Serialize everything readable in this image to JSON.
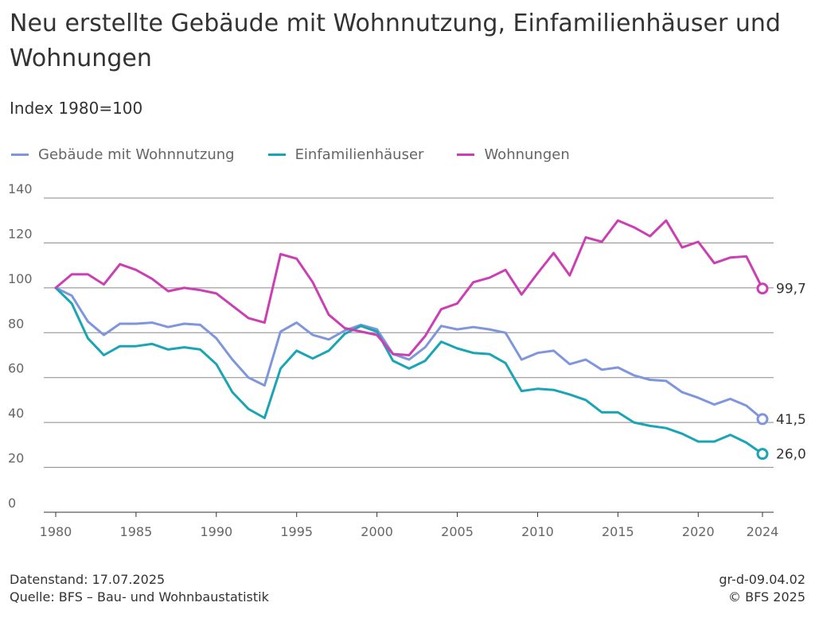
{
  "header": {
    "title": "Neu erstellte Gebäude mit Wohnnutzung, Einfamilienhäuser und Wohnungen",
    "subtitle": "Index 1980=100"
  },
  "footer": {
    "datenstand": "Datenstand: 17.07.2025",
    "quelle": "Quelle: BFS – Bau- und Wohnbaustatistik",
    "code": "gr-d-09.04.02",
    "copyright": "© BFS 2025"
  },
  "chart_data": {
    "type": "line",
    "title": "Neu erstellte Gebäude mit Wohnnutzung, Einfamilienhäuser und Wohnungen",
    "subtitle": "Index 1980=100",
    "xlabel": "",
    "ylabel": "Index 1980=100",
    "xlim": [
      1980,
      2024
    ],
    "ylim": [
      0,
      140
    ],
    "yticks": [
      0,
      20,
      40,
      60,
      80,
      100,
      120,
      140
    ],
    "xticks": [
      1980,
      1985,
      1990,
      1995,
      2000,
      2005,
      2010,
      2015,
      2020,
      2024
    ],
    "grid": "horizontal",
    "legend_position": "top-left",
    "x": [
      1980,
      1981,
      1982,
      1983,
      1984,
      1985,
      1986,
      1987,
      1988,
      1989,
      1990,
      1991,
      1992,
      1993,
      1994,
      1995,
      1996,
      1997,
      1998,
      1999,
      2000,
      2001,
      2002,
      2003,
      2004,
      2005,
      2006,
      2007,
      2008,
      2009,
      2010,
      2011,
      2012,
      2013,
      2014,
      2015,
      2016,
      2017,
      2018,
      2019,
      2020,
      2021,
      2022,
      2023,
      2024
    ],
    "series": [
      {
        "name": "Gebäude mit Wohnnutzung",
        "color": "#7f96dd",
        "end_label": "41,5",
        "values": [
          100,
          96.5,
          85,
          79,
          84,
          84,
          84.5,
          82.5,
          84,
          83.5,
          77.5,
          68,
          60,
          56.5,
          80.5,
          84.5,
          79,
          77,
          81,
          83.5,
          81.5,
          70.5,
          68,
          73.5,
          83,
          81.5,
          82.5,
          81.5,
          80,
          68,
          71,
          72,
          66,
          68,
          63.5,
          64.5,
          61,
          59,
          58.5,
          53.5,
          51,
          48,
          50.5,
          47.5,
          41.5
        ]
      },
      {
        "name": "Einfamilienhäuser",
        "color": "#1aa5b5",
        "end_label": "26,0",
        "values": [
          100,
          93,
          77.5,
          70,
          74,
          74,
          75,
          72.5,
          73.5,
          72.5,
          66,
          53.5,
          46,
          42,
          64,
          72,
          68.5,
          72,
          79.5,
          83,
          80.5,
          67.5,
          64,
          67.5,
          76,
          73,
          71,
          70.5,
          66.5,
          54,
          55,
          54.5,
          52.5,
          50,
          44.5,
          44.5,
          40,
          38.5,
          37.5,
          35,
          31.5,
          31.5,
          34.5,
          31,
          26
        ]
      },
      {
        "name": "Wohnungen",
        "color": "#cc3fb3",
        "end_label": "99,7",
        "values": [
          100,
          106,
          106,
          101.5,
          110.5,
          108,
          104,
          98.5,
          100,
          99,
          97.5,
          92,
          86.5,
          84.5,
          115,
          113,
          102.5,
          88,
          82,
          80.5,
          79,
          70.5,
          70,
          78.5,
          90.5,
          93,
          102.5,
          104.5,
          108,
          97,
          106.5,
          115.5,
          105.5,
          122.5,
          120.5,
          130,
          127,
          123,
          130,
          118,
          120.5,
          111,
          113.5,
          114,
          99.7
        ]
      }
    ]
  }
}
